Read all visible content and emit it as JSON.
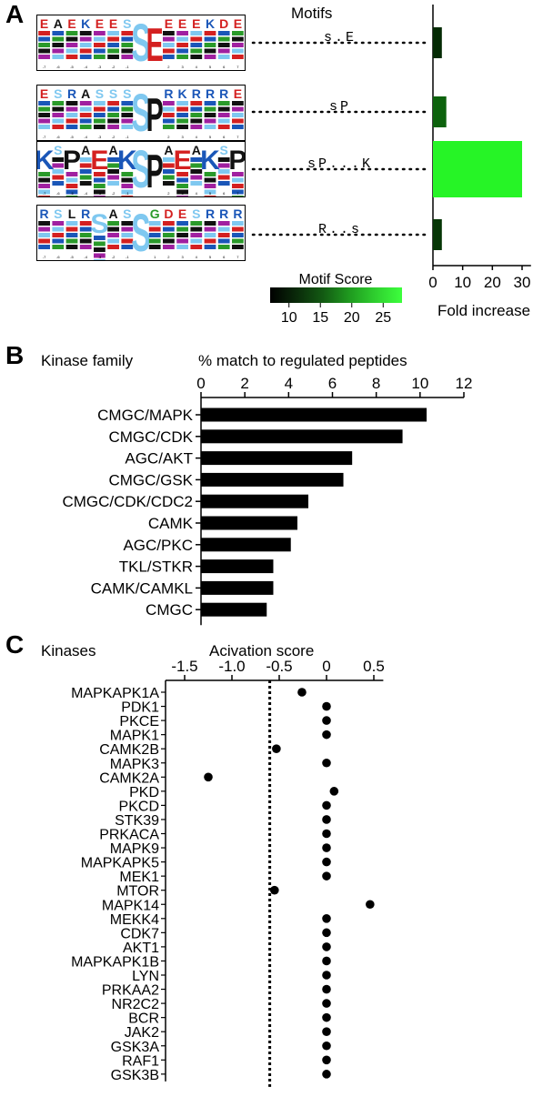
{
  "panels": {
    "a": {
      "letter": "A",
      "header": "Motifs",
      "motif_labels": [
        "s.E",
        "sP",
        "sP...K",
        "R..s"
      ],
      "logos": [
        {
          "name": "motif-logo-sE",
          "center": "E",
          "top_letters": [
            "E",
            "A",
            "E",
            "K",
            "E",
            "E",
            "S",
            "S",
            "E",
            "E",
            "E",
            "E",
            "K",
            "D"
          ]
        },
        {
          "name": "motif-logo-sP",
          "center": "P",
          "top_letters": [
            "E",
            "S",
            "R",
            "A",
            "S",
            "S",
            "S",
            "P",
            "G",
            "R",
            "K",
            "R",
            "R",
            "R"
          ]
        },
        {
          "name": "motif-logo-sPK",
          "center": "P",
          "top_letters": [
            "K",
            "S",
            "P",
            "A",
            "E",
            "A",
            "K",
            "S",
            "P",
            "A",
            "E",
            "A",
            "K",
            "S",
            "P"
          ]
        },
        {
          "name": "motif-logo-Rs",
          "center": "S",
          "top_letters": [
            "R",
            "S",
            "L",
            "R",
            "S",
            "A",
            "S",
            "S",
            "G",
            "D",
            "E",
            "S",
            "R",
            "R"
          ]
        }
      ],
      "scale_title": "Motif Score",
      "scale_ticks": [
        "10",
        "15",
        "20",
        "25"
      ],
      "scale_colors": [
        "#000000",
        "#0a2a0a",
        "#135a13",
        "#1f9a1f",
        "#2fd02f",
        "#3dff3d"
      ]
    },
    "b": {
      "letter": "B",
      "row_header": "Kinase family",
      "axis_title": "% match to regulated peptides",
      "bar_color": "#000000"
    },
    "c": {
      "letter": "C",
      "row_header": "Kinases",
      "axis_title": "Acivation score",
      "dot_color": "#000000"
    }
  },
  "chart_data": [
    {
      "type": "bar",
      "orientation": "horizontal",
      "categories": [
        "s.E",
        "sP",
        "sP...K",
        "R..s"
      ],
      "values": [
        3.0,
        4.5,
        30.0,
        3.0
      ],
      "motif_scores": [
        9.0,
        14.0,
        27.0,
        10.0
      ],
      "xlabel": "Fold increase",
      "xlim": [
        0,
        33
      ],
      "xticks": [
        "0",
        "10",
        "20",
        "30"
      ],
      "color_scale": {
        "title": "Motif Score",
        "range": [
          7,
          28
        ],
        "ticks": [
          10,
          15,
          20,
          25
        ]
      }
    },
    {
      "type": "bar",
      "orientation": "horizontal",
      "categories": [
        "CMGC/MAPK",
        "CMGC/CDK",
        "AGC/AKT",
        "CMGC/GSK",
        "CMGC/CDK/CDC2",
        "CAMK",
        "AGC/PKC",
        "TKL/STKR",
        "CAMK/CAMKL",
        "CMGC"
      ],
      "values": [
        10.3,
        9.2,
        6.9,
        6.5,
        4.9,
        4.4,
        4.1,
        3.3,
        3.3,
        3.0
      ],
      "xlabel": "% match to regulated peptides",
      "xlim": [
        0,
        12
      ],
      "xticks": [
        "0",
        "2",
        "4",
        "6",
        "8",
        "10",
        "12"
      ]
    },
    {
      "type": "scatter",
      "categories": [
        "MAPKAPK1A",
        "PDK1",
        "PKCE",
        "MAPK1",
        "CAMK2B",
        "MAPK3",
        "CAMK2A",
        "PKD",
        "PKCD",
        "STK39",
        "PRKACA",
        "MAPK9",
        "MAPKAPK5",
        "MEK1",
        "MTOR",
        "MAPK14",
        "MEKK4",
        "CDK7",
        "AKT1",
        "MAPKAPK1B",
        "LYN",
        "PRKAA2",
        "NR2C2",
        "BCR",
        "JAK2",
        "GSK3A",
        "RAF1",
        "GSK3B"
      ],
      "values": [
        -0.26,
        0,
        0,
        0,
        -0.53,
        0,
        -1.25,
        0.08,
        0,
        0,
        0,
        0,
        0,
        0,
        -0.55,
        0.46,
        0,
        0,
        0,
        0,
        0,
        0,
        0,
        0,
        0,
        0,
        0,
        0
      ],
      "xlabel": "Acivation score",
      "xlim": [
        -1.5,
        0.6
      ],
      "xticks": [
        "-1.5",
        "-1.0",
        "-0.5",
        "0",
        "0.5"
      ],
      "threshold": -0.6
    }
  ]
}
